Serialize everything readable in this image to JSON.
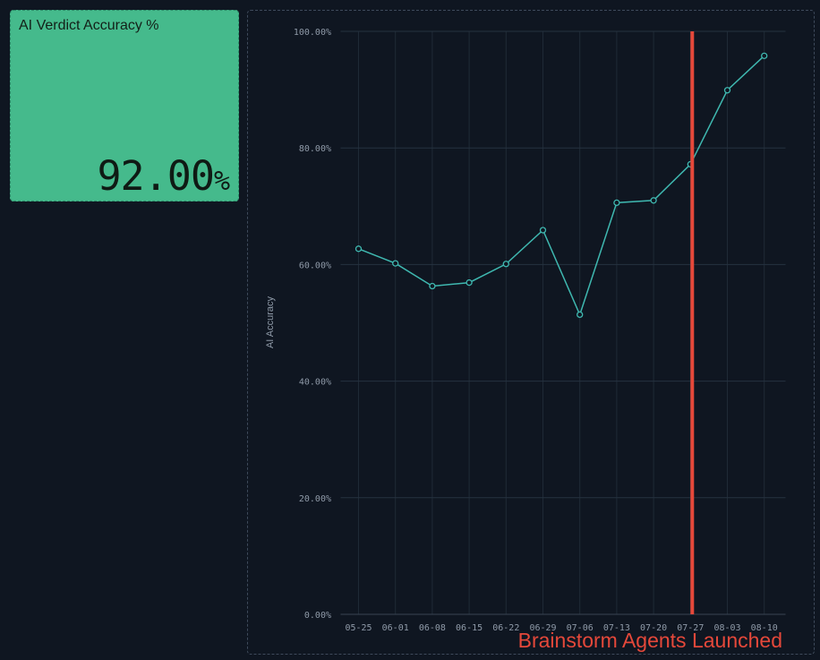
{
  "kpi": {
    "title": "AI Verdict Accuracy %",
    "value": "92.00",
    "unit": "%",
    "background": "#45ba8c"
  },
  "chart_data": {
    "type": "line",
    "categories": [
      "05-25",
      "06-01",
      "06-08",
      "06-15",
      "06-22",
      "06-29",
      "07-06",
      "07-13",
      "07-20",
      "07-27",
      "08-03",
      "08-10"
    ],
    "series": [
      {
        "values": [
          62.7,
          60.2,
          56.3,
          56.9,
          60.1,
          65.9,
          51.4,
          70.6,
          71.0,
          77.2,
          89.9,
          95.8
        ],
        "color": "#3fb8b0"
      }
    ],
    "ylabel": "AI Accuracy",
    "ylim": [
      0,
      100
    ],
    "yticks": [
      "0.00%",
      "20.00%",
      "40.00%",
      "60.00%",
      "80.00%",
      "100.00%"
    ],
    "grid": true,
    "annotation": {
      "label": "Brainstorm Agents Launched",
      "at_category": "07-27",
      "color": "#e5483a"
    }
  }
}
